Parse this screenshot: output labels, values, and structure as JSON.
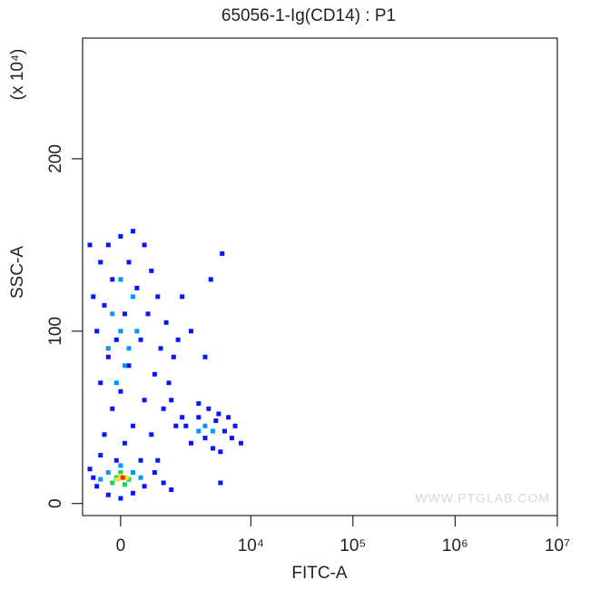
{
  "chart_data": {
    "type": "scatter",
    "title": "65056-1-Ig(CD14) : P1",
    "x_label": "FITC-A",
    "y_label": "SSC-A",
    "y_multiplier": "(x 10⁴)",
    "watermark": "WWW.PTGLAB.COM",
    "x_scale": "biexponential",
    "xlim": [
      -1030,
      10000000
    ],
    "ylim": [
      -7,
      270
    ],
    "xticks": [
      0,
      {
        "value": 10000,
        "label": "10⁴"
      },
      {
        "value": 100000,
        "label": "10⁵"
      },
      {
        "value": 1000000,
        "label": "10⁶"
      },
      {
        "value": 10000000,
        "label": "10⁷"
      }
    ],
    "yticks": [
      0,
      100,
      200
    ],
    "series": [
      {
        "color": "#0a14ff",
        "x": [
          -300,
          0,
          300,
          600,
          -500,
          200,
          800,
          -200,
          400,
          1000,
          -400,
          100,
          700,
          1300,
          -600,
          -100,
          500,
          1100,
          1600,
          -300,
          200,
          900,
          1400,
          -500,
          0,
          600,
          1200,
          -200,
          300,
          800,
          -400,
          100,
          1500,
          1800,
          -700,
          -800,
          2000,
          2500,
          1700,
          -100,
          2200,
          3000,
          3800,
          4500,
          5500,
          6500,
          2500,
          3500,
          4200,
          5000,
          7000,
          3000,
          4800,
          2000,
          6000,
          -800,
          -600,
          -300,
          0,
          300,
          600,
          900,
          1200,
          -500,
          500,
          1000,
          1500,
          -700,
          4000,
          5200,
          3500,
          8000,
          5000
        ],
        "values": [
          150,
          155,
          158,
          150,
          140,
          140,
          135,
          130,
          125,
          120,
          115,
          110,
          110,
          105,
          100,
          95,
          95,
          90,
          85,
          85,
          80,
          75,
          70,
          70,
          65,
          60,
          55,
          55,
          45,
          40,
          40,
          35,
          60,
          95,
          120,
          150,
          120,
          100,
          45,
          25,
          45,
          50,
          55,
          48,
          42,
          38,
          35,
          38,
          32,
          30,
          45,
          58,
          52,
          50,
          50,
          20,
          10,
          5,
          3,
          6,
          10,
          18,
          12,
          28,
          25,
          25,
          8,
          15,
          130,
          145,
          85,
          35,
          12
        ]
      },
      {
        "color": "#0096ff",
        "x": [
          0,
          200,
          -200,
          100,
          300,
          -100,
          0,
          400,
          -300,
          3500,
          4200,
          3000,
          -300,
          300,
          0,
          500,
          -500
        ],
        "values": [
          100,
          90,
          110,
          80,
          120,
          70,
          130,
          100,
          90,
          45,
          42,
          42,
          18,
          18,
          22,
          15,
          14
        ]
      },
      {
        "color": "#00d860",
        "x": [
          -100,
          200,
          0,
          100,
          -200
        ],
        "values": [
          15,
          14,
          18,
          11,
          12
        ]
      },
      {
        "color": "#ffe800",
        "x": [
          0,
          150,
          -80
        ],
        "values": [
          16,
          15,
          14
        ]
      },
      {
        "color": "#ff2020",
        "x": [
          50
        ],
        "values": [
          15
        ]
      }
    ]
  }
}
